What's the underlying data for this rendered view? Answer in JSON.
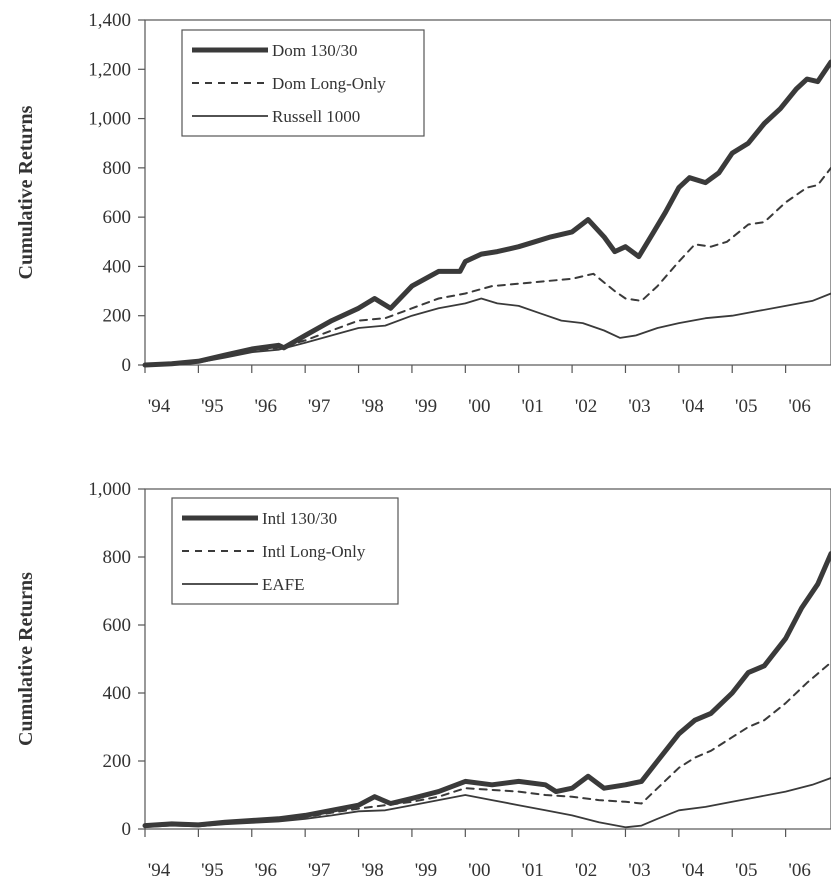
{
  "chart_data": [
    {
      "type": "line",
      "ylabel": "Cumulative Returns",
      "ylim": [
        0,
        1400
      ],
      "yticks": [
        "0",
        "200",
        "400",
        "600",
        "800",
        "1,000",
        "1,200",
        "1,400"
      ],
      "xticks": [
        "'94",
        "'95",
        "'96",
        "'97",
        "'98",
        "'99",
        "'00",
        "'01",
        "'02",
        "'03",
        "'04",
        "'05",
        "'06"
      ],
      "xlim": [
        1994.0,
        2006.85
      ],
      "legend_position": "top-left",
      "series": [
        {
          "name": "Dom 130/30",
          "style": "thick",
          "x": [
            1994.0,
            1994.5,
            1995.0,
            1995.5,
            1996.0,
            1996.5,
            1996.6,
            1997.0,
            1997.5,
            1998.0,
            1998.3,
            1998.6,
            1999.0,
            1999.5,
            1999.9,
            2000.0,
            2000.3,
            2000.6,
            2001.0,
            2001.3,
            2001.6,
            2002.0,
            2002.3,
            2002.6,
            2002.8,
            2003.0,
            2003.25,
            2003.5,
            2003.75,
            2004.0,
            2004.2,
            2004.5,
            2004.75,
            2005.0,
            2005.3,
            2005.6,
            2005.9,
            2006.2,
            2006.4,
            2006.6,
            2006.85
          ],
          "values": [
            0,
            5,
            15,
            40,
            65,
            80,
            70,
            120,
            180,
            230,
            270,
            230,
            320,
            380,
            380,
            420,
            450,
            460,
            480,
            500,
            520,
            540,
            590,
            520,
            460,
            480,
            440,
            530,
            620,
            720,
            760,
            740,
            780,
            860,
            900,
            980,
            1040,
            1120,
            1160,
            1150,
            1230
          ]
        },
        {
          "name": "Dom Long-Only",
          "style": "dashed",
          "x": [
            1994.0,
            1994.5,
            1995.0,
            1995.5,
            1996.0,
            1996.5,
            1997.0,
            1997.5,
            1998.0,
            1998.5,
            1999.0,
            1999.5,
            2000.0,
            2000.5,
            2001.0,
            2001.5,
            2002.0,
            2002.4,
            2002.8,
            2003.0,
            2003.3,
            2003.6,
            2004.0,
            2004.3,
            2004.6,
            2004.9,
            2005.3,
            2005.6,
            2006.0,
            2006.4,
            2006.6,
            2006.85
          ],
          "values": [
            0,
            5,
            12,
            35,
            58,
            70,
            100,
            140,
            180,
            190,
            230,
            270,
            290,
            320,
            330,
            340,
            350,
            370,
            300,
            270,
            260,
            320,
            420,
            490,
            480,
            500,
            570,
            580,
            660,
            720,
            730,
            800
          ]
        },
        {
          "name": "Russell 1000",
          "style": "thin",
          "x": [
            1994.0,
            1994.5,
            1995.0,
            1995.5,
            1996.0,
            1996.5,
            1997.0,
            1997.5,
            1998.0,
            1998.5,
            1999.0,
            1999.5,
            2000.0,
            2000.3,
            2000.6,
            2001.0,
            2001.4,
            2001.8,
            2002.2,
            2002.6,
            2002.9,
            2003.2,
            2003.6,
            2004.0,
            2004.5,
            2005.0,
            2005.5,
            2006.0,
            2006.5,
            2006.85
          ],
          "values": [
            0,
            4,
            10,
            30,
            52,
            62,
            90,
            120,
            150,
            160,
            200,
            230,
            250,
            270,
            250,
            240,
            210,
            180,
            170,
            140,
            110,
            120,
            150,
            170,
            190,
            200,
            220,
            240,
            260,
            290
          ]
        }
      ]
    },
    {
      "type": "line",
      "ylabel": "Cumulative Returns",
      "ylim": [
        0,
        1000
      ],
      "yticks": [
        "0",
        "200",
        "400",
        "600",
        "800",
        "1,000"
      ],
      "xticks": [
        "'94",
        "'95",
        "'96",
        "'97",
        "'98",
        "'99",
        "'00",
        "'01",
        "'02",
        "'03",
        "'04",
        "'05",
        "'06"
      ],
      "xlim": [
        1994.0,
        2006.85
      ],
      "legend_position": "top-left",
      "series": [
        {
          "name": "Intl 130/30",
          "style": "thick",
          "x": [
            1994.0,
            1994.5,
            1995.0,
            1995.5,
            1996.0,
            1996.5,
            1997.0,
            1997.5,
            1998.0,
            1998.3,
            1998.6,
            1999.0,
            1999.5,
            2000.0,
            2000.5,
            2001.0,
            2001.5,
            2001.7,
            2002.0,
            2002.3,
            2002.6,
            2003.0,
            2003.3,
            2003.6,
            2004.0,
            2004.3,
            2004.6,
            2005.0,
            2005.3,
            2005.6,
            2006.0,
            2006.3,
            2006.6,
            2006.85
          ],
          "values": [
            10,
            15,
            12,
            20,
            25,
            30,
            40,
            55,
            70,
            95,
            75,
            90,
            110,
            140,
            130,
            140,
            130,
            110,
            120,
            155,
            120,
            130,
            140,
            200,
            280,
            320,
            340,
            400,
            460,
            480,
            560,
            650,
            720,
            810
          ]
        },
        {
          "name": "Intl Long-Only",
          "style": "dashed",
          "x": [
            1994.0,
            1994.5,
            1995.0,
            1995.5,
            1996.0,
            1996.5,
            1997.0,
            1997.5,
            1998.0,
            1998.5,
            1999.0,
            1999.5,
            2000.0,
            2000.5,
            2001.0,
            2001.5,
            2002.0,
            2002.5,
            2003.0,
            2003.3,
            2003.6,
            2004.0,
            2004.3,
            2004.6,
            2005.0,
            2005.3,
            2005.6,
            2006.0,
            2006.4,
            2006.85
          ],
          "values": [
            8,
            12,
            10,
            17,
            22,
            27,
            35,
            48,
            60,
            70,
            80,
            95,
            120,
            115,
            110,
            100,
            95,
            85,
            80,
            75,
            120,
            180,
            210,
            230,
            270,
            300,
            320,
            370,
            430,
            490
          ]
        },
        {
          "name": "EAFE",
          "style": "thin",
          "x": [
            1994.0,
            1994.5,
            1995.0,
            1995.5,
            1996.0,
            1996.5,
            1997.0,
            1997.5,
            1998.0,
            1998.5,
            1999.0,
            1999.5,
            2000.0,
            2000.5,
            2001.0,
            2001.5,
            2002.0,
            2002.5,
            2003.0,
            2003.3,
            2003.6,
            2004.0,
            2004.5,
            2005.0,
            2005.5,
            2006.0,
            2006.5,
            2006.85
          ],
          "values": [
            6,
            10,
            8,
            14,
            18,
            22,
            30,
            40,
            52,
            55,
            70,
            85,
            100,
            85,
            70,
            55,
            40,
            20,
            5,
            10,
            30,
            55,
            65,
            80,
            95,
            110,
            130,
            150
          ]
        }
      ]
    }
  ],
  "colors": {
    "line": "#3a3a3a",
    "axis": "#555555",
    "text": "#333333",
    "background": "#ffffff"
  }
}
